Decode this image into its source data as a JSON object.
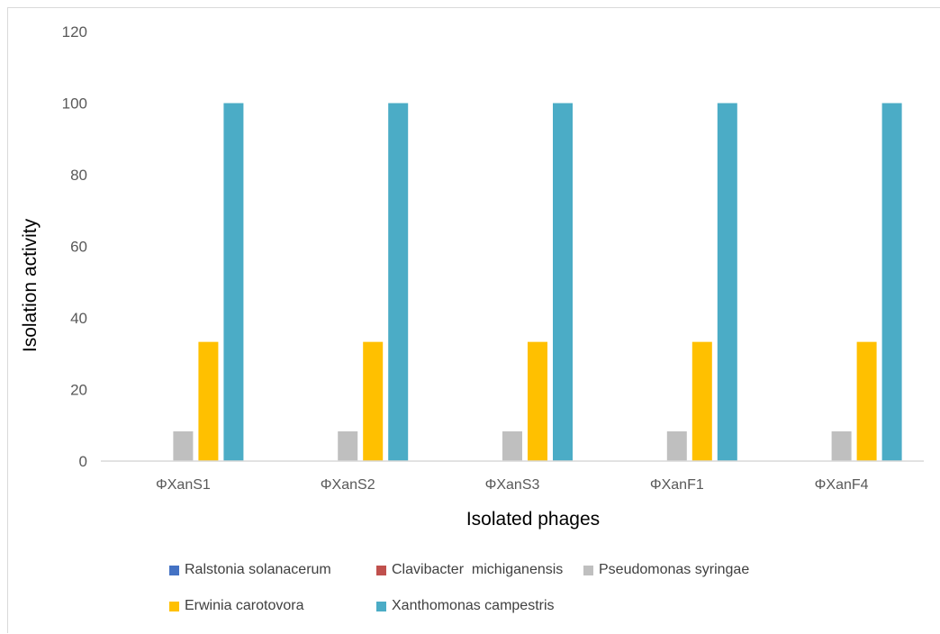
{
  "chart_data": {
    "type": "bar",
    "title": "",
    "xlabel": "Isolated phages",
    "ylabel": "Isolation activity",
    "ylim": [
      0,
      120
    ],
    "yticks": [
      "0",
      "20",
      "40",
      "60",
      "80",
      "100",
      "120"
    ],
    "categories": [
      "ΦXanS1",
      "ΦXanS2",
      "ΦXanS3",
      "ΦXanF1",
      "ΦXanF4"
    ],
    "series": [
      {
        "name": "Ralstonia solanacerum",
        "color": "#4472c4",
        "values": [
          0,
          0,
          0,
          0,
          0
        ]
      },
      {
        "name": "Clavibacter  michiganensis",
        "color": "#c0504d",
        "values": [
          0,
          0,
          0,
          0,
          0
        ]
      },
      {
        "name": "Pseudomonas syringae",
        "color": "#bfbfbf",
        "values": [
          8.3,
          8.3,
          8.3,
          8.3,
          8.3
        ]
      },
      {
        "name": "Erwinia carotovora",
        "color": "#ffc000",
        "values": [
          33.3,
          33.3,
          33.3,
          33.3,
          33.3
        ]
      },
      {
        "name": "Xanthomonas campestris",
        "color": "#4bacc6",
        "values": [
          100,
          100,
          100,
          100,
          100
        ]
      }
    ],
    "grid": false,
    "legend_position": "bottom"
  }
}
